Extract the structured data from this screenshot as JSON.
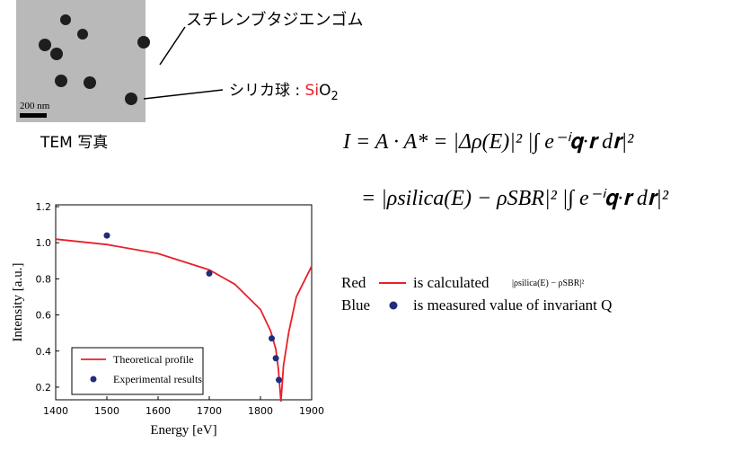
{
  "tem": {
    "scale_label": "200 nm",
    "caption": "TEM 写真"
  },
  "annotations": {
    "rubber": "スチレンブタジエンゴム",
    "silica_prefix": "シリカ球 : ",
    "silica_si": "Si",
    "silica_o": "O",
    "silica_sub": "2"
  },
  "equations": {
    "line1": "I = A · A* = |Δρ(E)|²  |∫ e⁻ⁱ𝐪·𝐫 d𝐫|²",
    "line2": "= |ρsilica(E) − ρSBR|²  |∫ e⁻ⁱ𝐪·𝐫 d𝐫|²"
  },
  "notes": {
    "red_word": "Red",
    "red_text": "is calculated",
    "red_formula": "|ρsilica(E) − ρSBR|²",
    "blue_word": "Blue",
    "blue_text": "is measured value of invariant Q"
  },
  "chart_data": {
    "type": "line",
    "x_label": "Energy [eV]",
    "y_label": "Intensity [a.u.]",
    "xlim": [
      1400,
      1900
    ],
    "ylim": [
      0.13,
      1.21
    ],
    "xticks": [
      1400,
      1500,
      1600,
      1700,
      1800,
      1900
    ],
    "yticks": [
      0.2,
      0.4,
      0.6,
      0.8,
      {
        "value": 1,
        "label": "1.0"
      },
      1.2
    ],
    "series": [
      {
        "name": "Theoretical profile",
        "color": "#e8202a",
        "style": "line",
        "x": [
          1400,
          1500,
          1600,
          1700,
          1750,
          1800,
          1820,
          1830,
          1835,
          1840,
          1845,
          1855,
          1870,
          1900
        ],
        "values": [
          1.02,
          0.99,
          0.94,
          0.85,
          0.77,
          0.63,
          0.51,
          0.41,
          0.3,
          0.12,
          0.32,
          0.5,
          0.7,
          0.87
        ]
      },
      {
        "name": "Experimental results",
        "color": "#1f2d7a",
        "style": "scatter",
        "x": [
          1500,
          1700,
          1822,
          1830,
          1836
        ],
        "values": [
          1.04,
          0.83,
          0.47,
          0.36,
          0.24
        ]
      }
    ]
  }
}
